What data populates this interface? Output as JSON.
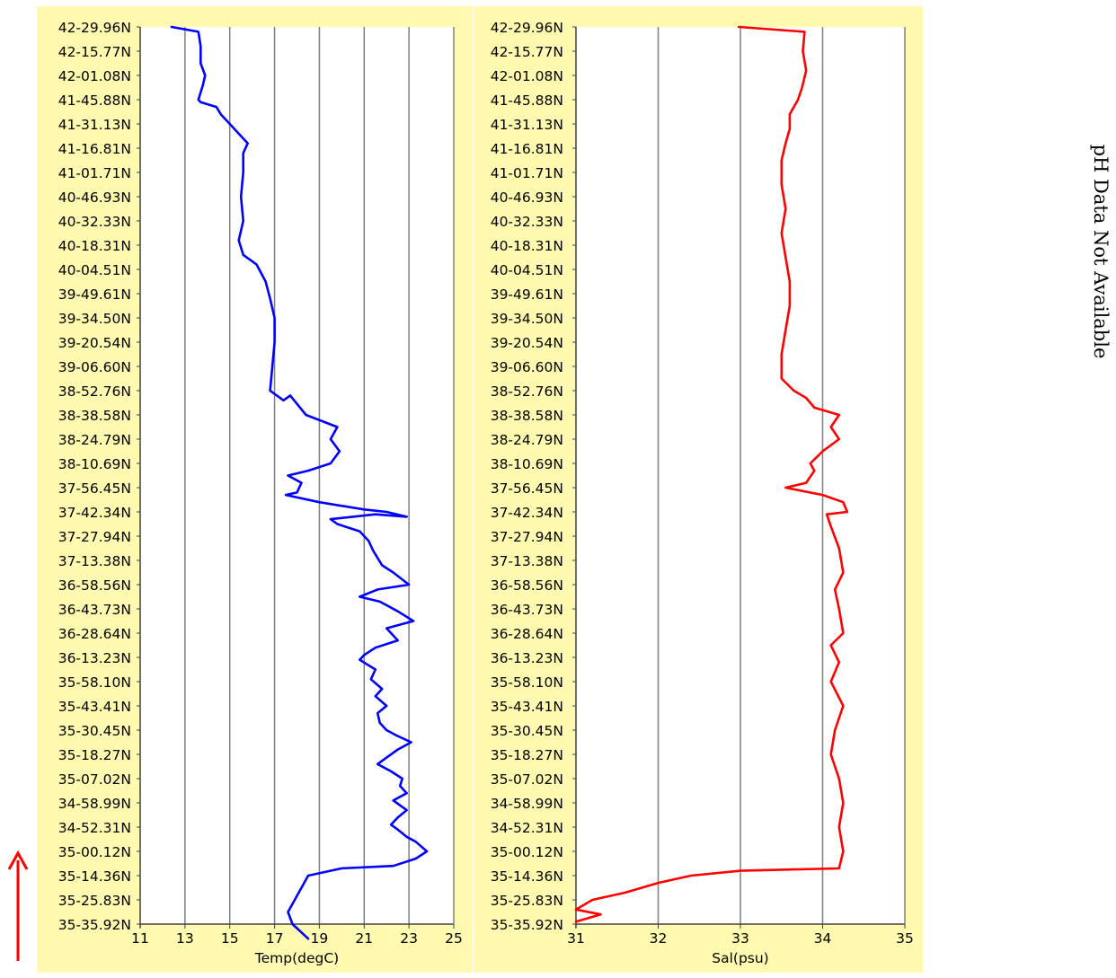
{
  "chart_data": [
    {
      "type": "line",
      "xlabel": "Temp(degC)",
      "ylabel": "",
      "xlim": [
        11,
        25
      ],
      "xticks": [
        11,
        13,
        15,
        17,
        19,
        21,
        23,
        25
      ],
      "ytick_labels": [
        "42-29.96N",
        "42-15.77N",
        "42-01.08N",
        "41-45.88N",
        "41-31.13N",
        "41-16.81N",
        "41-01.71N",
        "40-46.93N",
        "40-32.33N",
        "40-18.31N",
        "40-04.51N",
        "39-49.61N",
        "39-34.50N",
        "39-20.54N",
        "39-06.60N",
        "38-52.76N",
        "38-38.58N",
        "38-24.79N",
        "38-10.69N",
        "37-56.45N",
        "37-42.34N",
        "37-27.94N",
        "37-13.38N",
        "36-58.56N",
        "36-43.73N",
        "36-28.64N",
        "36-13.23N",
        "35-58.10N",
        "35-43.41N",
        "35-30.45N",
        "35-18.27N",
        "35-07.02N",
        "34-58.99N",
        "34-52.31N",
        "35-00.12N",
        "35-14.36N",
        "35-25.83N",
        "35-35.92N"
      ],
      "grid": true,
      "background": "#fffab0",
      "series": [
        {
          "color": "#0000ff",
          "points": [
            [
              12.4,
              0
            ],
            [
              13.6,
              0.2
            ],
            [
              13.7,
              0.8
            ],
            [
              13.7,
              1.5
            ],
            [
              13.9,
              2.0
            ],
            [
              13.8,
              2.4
            ],
            [
              13.6,
              3.0
            ],
            [
              13.7,
              3.1
            ],
            [
              14.4,
              3.3
            ],
            [
              14.6,
              3.6
            ],
            [
              15.0,
              4.0
            ],
            [
              15.3,
              4.3
            ],
            [
              15.8,
              4.8
            ],
            [
              15.6,
              5.2
            ],
            [
              15.6,
              6.0
            ],
            [
              15.5,
              7.0
            ],
            [
              15.6,
              8.0
            ],
            [
              15.4,
              8.8
            ],
            [
              15.6,
              9.4
            ],
            [
              16.2,
              9.8
            ],
            [
              16.6,
              10.5
            ],
            [
              16.8,
              11.2
            ],
            [
              17.0,
              12.0
            ],
            [
              17.0,
              13.0
            ],
            [
              16.9,
              14.0
            ],
            [
              16.8,
              15.0
            ],
            [
              17.4,
              15.4
            ],
            [
              17.7,
              15.2
            ],
            [
              18.4,
              16.0
            ],
            [
              19.8,
              16.5
            ],
            [
              19.5,
              17.0
            ],
            [
              19.9,
              17.5
            ],
            [
              19.5,
              18.0
            ],
            [
              18.5,
              18.3
            ],
            [
              17.6,
              18.5
            ],
            [
              18.2,
              18.8
            ],
            [
              18.0,
              19.2
            ],
            [
              17.5,
              19.3
            ],
            [
              19.0,
              19.6
            ],
            [
              21.0,
              19.9
            ],
            [
              22.0,
              20.0
            ],
            [
              22.9,
              20.2
            ],
            [
              21.5,
              20.1
            ],
            [
              19.5,
              20.3
            ],
            [
              19.8,
              20.5
            ],
            [
              20.8,
              20.8
            ],
            [
              21.2,
              21.2
            ],
            [
              21.4,
              21.6
            ],
            [
              21.8,
              22.2
            ],
            [
              22.3,
              22.5
            ],
            [
              23.0,
              23.0
            ],
            [
              21.6,
              23.2
            ],
            [
              20.8,
              23.5
            ],
            [
              21.7,
              23.7
            ],
            [
              22.5,
              24.1
            ],
            [
              23.2,
              24.5
            ],
            [
              22.0,
              24.8
            ],
            [
              22.5,
              25.3
            ],
            [
              21.5,
              25.6
            ],
            [
              21.0,
              25.9
            ],
            [
              20.8,
              26.1
            ],
            [
              21.5,
              26.5
            ],
            [
              21.3,
              26.9
            ],
            [
              21.8,
              27.3
            ],
            [
              21.5,
              27.6
            ],
            [
              22.0,
              28.0
            ],
            [
              21.6,
              28.3
            ],
            [
              21.7,
              28.7
            ],
            [
              22.0,
              29.0
            ],
            [
              22.4,
              29.2
            ],
            [
              23.1,
              29.5
            ],
            [
              22.5,
              29.8
            ],
            [
              21.6,
              30.4
            ],
            [
              22.2,
              30.7
            ],
            [
              22.7,
              31.0
            ],
            [
              22.6,
              31.3
            ],
            [
              22.9,
              31.6
            ],
            [
              22.3,
              31.9
            ],
            [
              22.9,
              32.3
            ],
            [
              22.5,
              32.6
            ],
            [
              22.2,
              32.9
            ],
            [
              22.5,
              33.1
            ],
            [
              22.9,
              33.4
            ],
            [
              23.3,
              33.6
            ],
            [
              23.8,
              34.0
            ],
            [
              23.3,
              34.3
            ],
            [
              22.3,
              34.6
            ],
            [
              20.0,
              34.7
            ],
            [
              18.5,
              35.0
            ],
            [
              18.2,
              35.5
            ],
            [
              17.9,
              36.0
            ],
            [
              17.6,
              36.5
            ],
            [
              17.8,
              37.0
            ],
            [
              18.5,
              37.6
            ]
          ]
        }
      ]
    },
    {
      "type": "line",
      "xlabel": "Sal(psu)",
      "ylabel": "",
      "xlim": [
        31,
        35
      ],
      "xticks": [
        31,
        32,
        33,
        34,
        35
      ],
      "ytick_labels": [
        "42-29.96N",
        "42-15.77N",
        "42-01.08N",
        "41-45.88N",
        "41-31.13N",
        "41-16.81N",
        "41-01.71N",
        "40-46.93N",
        "40-32.33N",
        "40-18.31N",
        "40-04.51N",
        "39-49.61N",
        "39-34.50N",
        "39-20.54N",
        "39-06.60N",
        "38-52.76N",
        "38-38.58N",
        "38-24.79N",
        "38-10.69N",
        "37-56.45N",
        "37-42.34N",
        "37-27.94N",
        "37-13.38N",
        "36-58.56N",
        "36-43.73N",
        "36-28.64N",
        "36-13.23N",
        "35-58.10N",
        "35-43.41N",
        "35-30.45N",
        "35-18.27N",
        "35-07.02N",
        "34-58.99N",
        "34-52.31N",
        "35-00.12N",
        "35-14.36N",
        "35-25.83N",
        "35-35.92N"
      ],
      "grid": true,
      "background": "#fffab0",
      "series": [
        {
          "color": "#ff0000",
          "points": [
            [
              32.98,
              0
            ],
            [
              33.78,
              0.2
            ],
            [
              33.76,
              1.0
            ],
            [
              33.8,
              1.8
            ],
            [
              33.75,
              2.5
            ],
            [
              33.7,
              3.0
            ],
            [
              33.6,
              3.6
            ],
            [
              33.6,
              4.2
            ],
            [
              33.55,
              4.8
            ],
            [
              33.5,
              5.5
            ],
            [
              33.5,
              6.5
            ],
            [
              33.55,
              7.5
            ],
            [
              33.5,
              8.5
            ],
            [
              33.55,
              9.5
            ],
            [
              33.6,
              10.5
            ],
            [
              33.6,
              11.5
            ],
            [
              33.55,
              12.5
            ],
            [
              33.5,
              13.5
            ],
            [
              33.5,
              14.5
            ],
            [
              33.65,
              15.0
            ],
            [
              33.8,
              15.3
            ],
            [
              33.9,
              15.7
            ],
            [
              34.2,
              16.0
            ],
            [
              34.1,
              16.5
            ],
            [
              34.2,
              17.0
            ],
            [
              34.0,
              17.5
            ],
            [
              33.85,
              18.0
            ],
            [
              33.9,
              18.3
            ],
            [
              33.8,
              18.8
            ],
            [
              33.55,
              19.0
            ],
            [
              34.0,
              19.3
            ],
            [
              34.25,
              19.6
            ],
            [
              34.3,
              20.0
            ],
            [
              34.05,
              20.1
            ],
            [
              34.1,
              20.6
            ],
            [
              34.2,
              21.5
            ],
            [
              34.25,
              22.5
            ],
            [
              34.15,
              23.2
            ],
            [
              34.2,
              24.0
            ],
            [
              34.25,
              25.0
            ],
            [
              34.1,
              25.5
            ],
            [
              34.2,
              26.2
            ],
            [
              34.1,
              27.0
            ],
            [
              34.25,
              28.0
            ],
            [
              34.15,
              29.0
            ],
            [
              34.1,
              30.0
            ],
            [
              34.15,
              30.5
            ],
            [
              34.2,
              31.0
            ],
            [
              34.25,
              32.0
            ],
            [
              34.2,
              33.0
            ],
            [
              34.25,
              34.0
            ],
            [
              34.2,
              34.7
            ],
            [
              33.0,
              34.8
            ],
            [
              32.4,
              35.0
            ],
            [
              32.0,
              35.3
            ],
            [
              31.6,
              35.7
            ],
            [
              31.2,
              36.0
            ],
            [
              31.0,
              36.4
            ],
            [
              31.3,
              36.6
            ],
            [
              31.0,
              36.9
            ]
          ]
        }
      ]
    }
  ],
  "side_note": "pH Data Not Available"
}
